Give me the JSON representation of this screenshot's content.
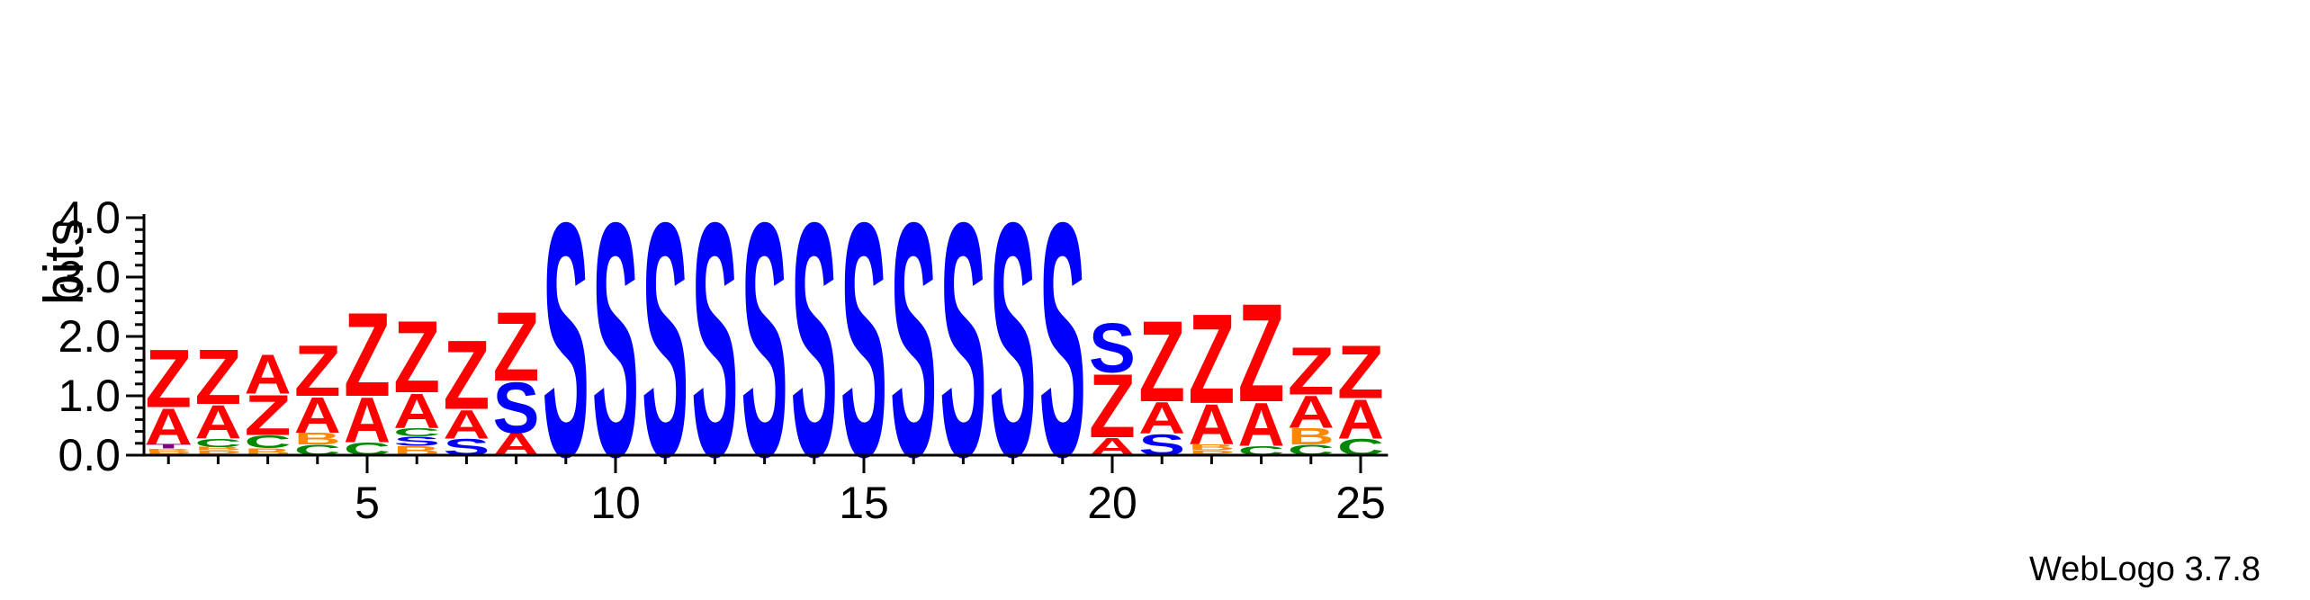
{
  "chart_data": {
    "type": "sequence_logo",
    "ylabel": "bits",
    "ylim": [
      0,
      4.0
    ],
    "y_ticks": [
      "0.0",
      "1.0",
      "2.0",
      "3.0",
      "4.0"
    ],
    "x_ticks": [
      5,
      10,
      15,
      20,
      25
    ],
    "positions": [
      {
        "pos": 1,
        "stack": [
          {
            "letter": "P",
            "bits": 0.06
          },
          {
            "letter": "B",
            "bits": 0.05
          },
          {
            "letter": "T",
            "bits": 0.08
          },
          {
            "letter": "A",
            "bits": 0.62
          },
          {
            "letter": "Z",
            "bits": 1.0
          }
        ]
      },
      {
        "pos": 2,
        "stack": [
          {
            "letter": "P",
            "bits": 0.08
          },
          {
            "letter": "B",
            "bits": 0.06
          },
          {
            "letter": "C",
            "bits": 0.14
          },
          {
            "letter": "A",
            "bits": 0.58
          },
          {
            "letter": "Z",
            "bits": 0.95
          }
        ]
      },
      {
        "pos": 3,
        "stack": [
          {
            "letter": "B",
            "bits": 0.12
          },
          {
            "letter": "C",
            "bits": 0.22
          },
          {
            "letter": "Z",
            "bits": 0.7
          },
          {
            "letter": "A",
            "bits": 0.68
          }
        ]
      },
      {
        "pos": 4,
        "stack": [
          {
            "letter": "C",
            "bits": 0.18
          },
          {
            "letter": "B",
            "bits": 0.2
          },
          {
            "letter": "A",
            "bits": 0.62
          },
          {
            "letter": "Z",
            "bits": 0.88
          }
        ]
      },
      {
        "pos": 5,
        "stack": [
          {
            "letter": "C",
            "bits": 0.22
          },
          {
            "letter": "A",
            "bits": 0.78
          },
          {
            "letter": "Z",
            "bits": 1.45
          }
        ]
      },
      {
        "pos": 6,
        "stack": [
          {
            "letter": "B",
            "bits": 0.16
          },
          {
            "letter": "S",
            "bits": 0.16
          },
          {
            "letter": "C",
            "bits": 0.14
          },
          {
            "letter": "A",
            "bits": 0.6
          },
          {
            "letter": "Z",
            "bits": 1.25
          }
        ]
      },
      {
        "pos": 7,
        "stack": [
          {
            "letter": "S",
            "bits": 0.28
          },
          {
            "letter": "A",
            "bits": 0.5
          },
          {
            "letter": "Z",
            "bits": 1.2
          }
        ]
      },
      {
        "pos": 8,
        "stack": [
          {
            "letter": "A",
            "bits": 0.38
          },
          {
            "letter": "S",
            "bits": 0.88
          },
          {
            "letter": "Z",
            "bits": 1.2
          }
        ]
      },
      {
        "pos": 9,
        "stack": [
          {
            "letter": "S",
            "bits": 4.05
          }
        ]
      },
      {
        "pos": 10,
        "stack": [
          {
            "letter": "S",
            "bits": 4.05
          }
        ]
      },
      {
        "pos": 11,
        "stack": [
          {
            "letter": "S",
            "bits": 4.05
          }
        ]
      },
      {
        "pos": 12,
        "stack": [
          {
            "letter": "S",
            "bits": 4.05
          }
        ]
      },
      {
        "pos": 13,
        "stack": [
          {
            "letter": "S",
            "bits": 4.05
          }
        ]
      },
      {
        "pos": 14,
        "stack": [
          {
            "letter": "S",
            "bits": 4.05
          }
        ]
      },
      {
        "pos": 15,
        "stack": [
          {
            "letter": "S",
            "bits": 4.05
          }
        ]
      },
      {
        "pos": 16,
        "stack": [
          {
            "letter": "S",
            "bits": 4.05
          }
        ]
      },
      {
        "pos": 17,
        "stack": [
          {
            "letter": "S",
            "bits": 4.05
          }
        ]
      },
      {
        "pos": 18,
        "stack": [
          {
            "letter": "S",
            "bits": 4.05
          }
        ]
      },
      {
        "pos": 19,
        "stack": [
          {
            "letter": "S",
            "bits": 4.05
          }
        ]
      },
      {
        "pos": 20,
        "stack": [
          {
            "letter": "A",
            "bits": 0.3
          },
          {
            "letter": "Z",
            "bits": 1.1
          },
          {
            "letter": "S",
            "bits": 0.85
          }
        ]
      },
      {
        "pos": 21,
        "stack": [
          {
            "letter": "S",
            "bits": 0.36
          },
          {
            "letter": "A",
            "bits": 0.55
          },
          {
            "letter": "Z",
            "bits": 1.4
          }
        ]
      },
      {
        "pos": 22,
        "stack": [
          {
            "letter": "P",
            "bits": 0.08
          },
          {
            "letter": "B",
            "bits": 0.1
          },
          {
            "letter": "A",
            "bits": 0.7
          },
          {
            "letter": "Z",
            "bits": 1.55
          }
        ]
      },
      {
        "pos": 23,
        "stack": [
          {
            "letter": "C",
            "bits": 0.16
          },
          {
            "letter": "A",
            "bits": 0.75
          },
          {
            "letter": "Z",
            "bits": 1.7
          }
        ]
      },
      {
        "pos": 24,
        "stack": [
          {
            "letter": "C",
            "bits": 0.18
          },
          {
            "letter": "B",
            "bits": 0.28
          },
          {
            "letter": "A",
            "bits": 0.56
          },
          {
            "letter": "Z",
            "bits": 0.82
          }
        ]
      },
      {
        "pos": 25,
        "stack": [
          {
            "letter": "C",
            "bits": 0.28
          },
          {
            "letter": "A",
            "bits": 0.68
          },
          {
            "letter": "Z",
            "bits": 0.92
          }
        ]
      }
    ]
  },
  "colors": {
    "Z": "#ff0000",
    "A": "#ff0000",
    "S": "#0000ff",
    "C": "#008800",
    "B": "#ff8800",
    "P": "#ff8800",
    "T": "#800080",
    "axis": "#000000"
  },
  "credit": "WebLogo 3.7.8"
}
